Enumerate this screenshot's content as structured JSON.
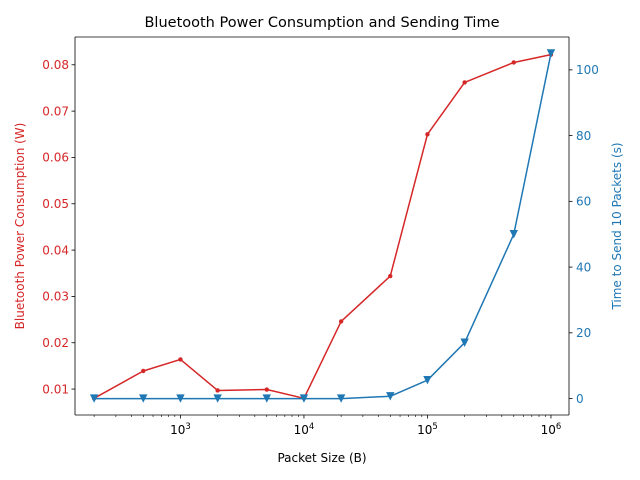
{
  "chart_data": {
    "type": "line",
    "title": "Bluetooth Power Consumption and Sending Time",
    "xlabel": "Packet Size (B)",
    "xscale": "log",
    "xlim": [
      140,
      1400000
    ],
    "x_ticks": [
      {
        "value": 1000,
        "base": "10",
        "exp": "3"
      },
      {
        "value": 10000,
        "base": "10",
        "exp": "4"
      },
      {
        "value": 100000,
        "base": "10",
        "exp": "5"
      },
      {
        "value": 1000000,
        "base": "10",
        "exp": "6"
      }
    ],
    "x": [
      200,
      500,
      1000,
      2000,
      5000,
      10000,
      20000,
      50000,
      100000,
      200000,
      500000,
      1000000
    ],
    "left_axis": {
      "label": "Bluetooth Power Consumption (W)",
      "color": "#d62728",
      "ylim": [
        0.0044,
        0.086
      ],
      "ticks": [
        "0.01",
        "0.02",
        "0.03",
        "0.04",
        "0.05",
        "0.06",
        "0.07",
        "0.08"
      ]
    },
    "right_axis": {
      "label": "Time to Send 10 Packets (s)",
      "color": "#1f77b4",
      "ylim": [
        -5,
        110
      ],
      "ticks": [
        "0",
        "20",
        "40",
        "60",
        "80",
        "100"
      ]
    },
    "series": [
      {
        "axis": "left",
        "marker": "dot",
        "color": "#d62728",
        "values": [
          0.008,
          0.0139,
          0.0164,
          0.0097,
          0.0099,
          0.008,
          0.0246,
          0.0344,
          0.065,
          0.0762,
          0.0805,
          0.0822
        ]
      },
      {
        "axis": "right",
        "marker": "triangle-down",
        "color": "#1f77b4",
        "values": [
          0.0,
          0.0,
          0.0,
          0.0,
          0.0,
          0.0,
          0.0,
          0.7,
          5.6,
          17.0,
          50.0,
          105.0
        ]
      }
    ],
    "grid": false
  }
}
